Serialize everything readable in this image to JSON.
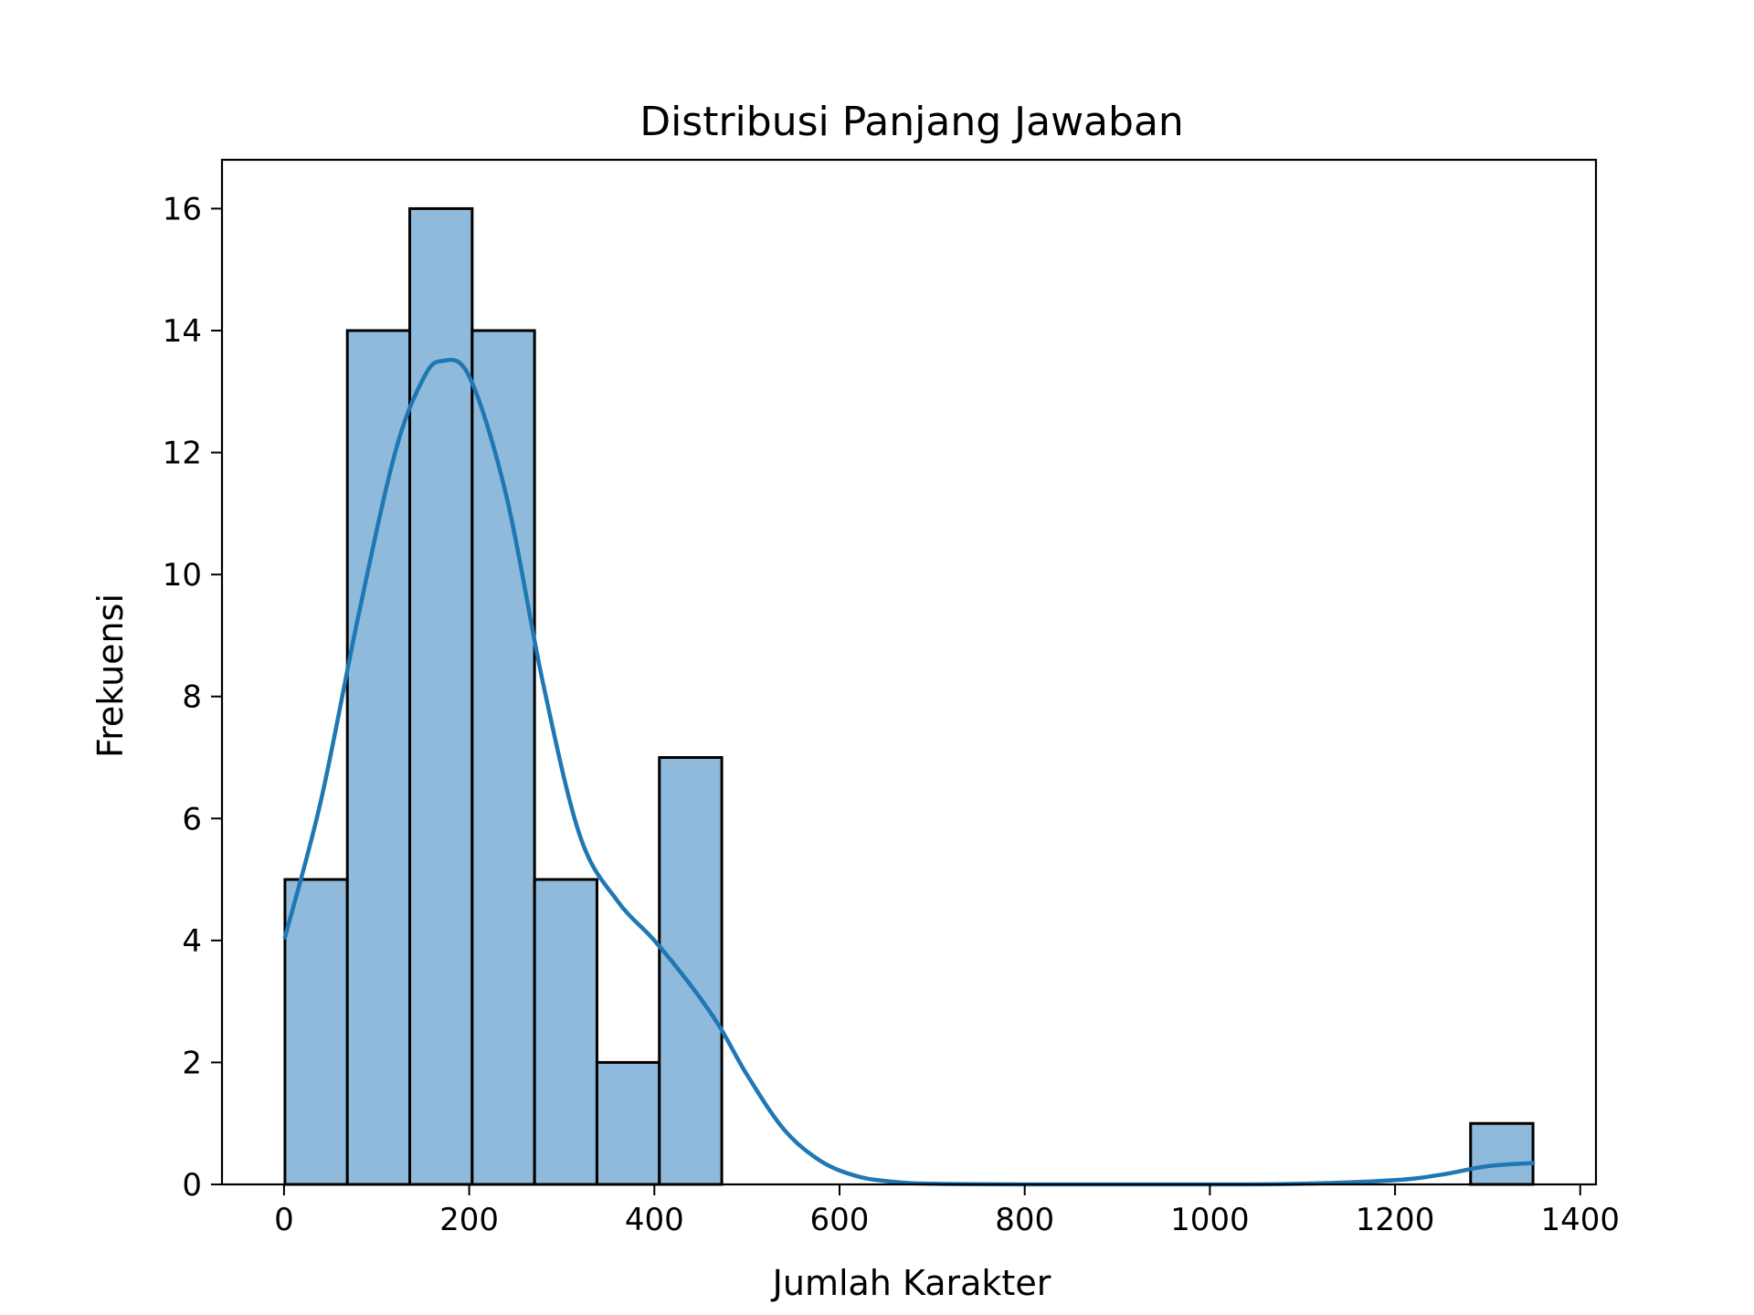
{
  "chart_data": {
    "type": "histogram",
    "title": "Distribusi Panjang Jawaban",
    "xlabel": "Jumlah Karakter",
    "ylabel": "Frekuensi",
    "xlim": [
      -67,
      1417
    ],
    "ylim": [
      0,
      16.8
    ],
    "xticks": [
      0,
      200,
      400,
      600,
      800,
      1000,
      1200,
      1400
    ],
    "yticks": [
      0,
      2,
      4,
      6,
      8,
      10,
      12,
      14,
      16
    ],
    "bins": [
      {
        "x0": 1,
        "x1": 68.4,
        "count": 5
      },
      {
        "x0": 68.4,
        "x1": 135.8,
        "count": 14
      },
      {
        "x0": 135.8,
        "x1": 203.2,
        "count": 16
      },
      {
        "x0": 203.2,
        "x1": 270.6,
        "count": 14
      },
      {
        "x0": 270.6,
        "x1": 338,
        "count": 5
      },
      {
        "x0": 338,
        "x1": 405.4,
        "count": 2
      },
      {
        "x0": 405.4,
        "x1": 472.8,
        "count": 7
      },
      {
        "x0": 472.8,
        "x1": 540.2,
        "count": 0
      },
      {
        "x0": 540.2,
        "x1": 607.6,
        "count": 0
      },
      {
        "x0": 607.6,
        "x1": 675,
        "count": 0
      },
      {
        "x0": 675,
        "x1": 742.4,
        "count": 0
      },
      {
        "x0": 742.4,
        "x1": 809.8,
        "count": 0
      },
      {
        "x0": 809.8,
        "x1": 877.2,
        "count": 0
      },
      {
        "x0": 877.2,
        "x1": 944.6,
        "count": 0
      },
      {
        "x0": 944.6,
        "x1": 1012,
        "count": 0
      },
      {
        "x0": 1012,
        "x1": 1079.4,
        "count": 0
      },
      {
        "x0": 1079.4,
        "x1": 1146.8,
        "count": 0
      },
      {
        "x0": 1146.8,
        "x1": 1214.2,
        "count": 0
      },
      {
        "x0": 1214.2,
        "x1": 1281.6,
        "count": 0
      },
      {
        "x0": 1281.6,
        "x1": 1349,
        "count": 1
      }
    ],
    "kde": {
      "x": [
        1,
        40,
        80,
        120,
        150,
        170,
        200,
        240,
        280,
        320,
        360,
        400,
        440,
        470,
        500,
        540,
        580,
        620,
        660,
        700,
        800,
        900,
        1000,
        1100,
        1200,
        1250,
        1300,
        1349
      ],
      "y": [
        4.05,
        6.3,
        9.3,
        12.0,
        13.2,
        13.5,
        13.25,
        11.3,
        8.2,
        5.7,
        4.65,
        4.0,
        3.25,
        2.6,
        1.8,
        0.9,
        0.38,
        0.13,
        0.04,
        0.01,
        0.0,
        0.0,
        0.0,
        0.01,
        0.07,
        0.16,
        0.3,
        0.35
      ]
    },
    "bar_color": "#8fbadb",
    "bar_edge": "#000000",
    "line_color": "#1f77b4",
    "grid": false,
    "legend": "none"
  }
}
